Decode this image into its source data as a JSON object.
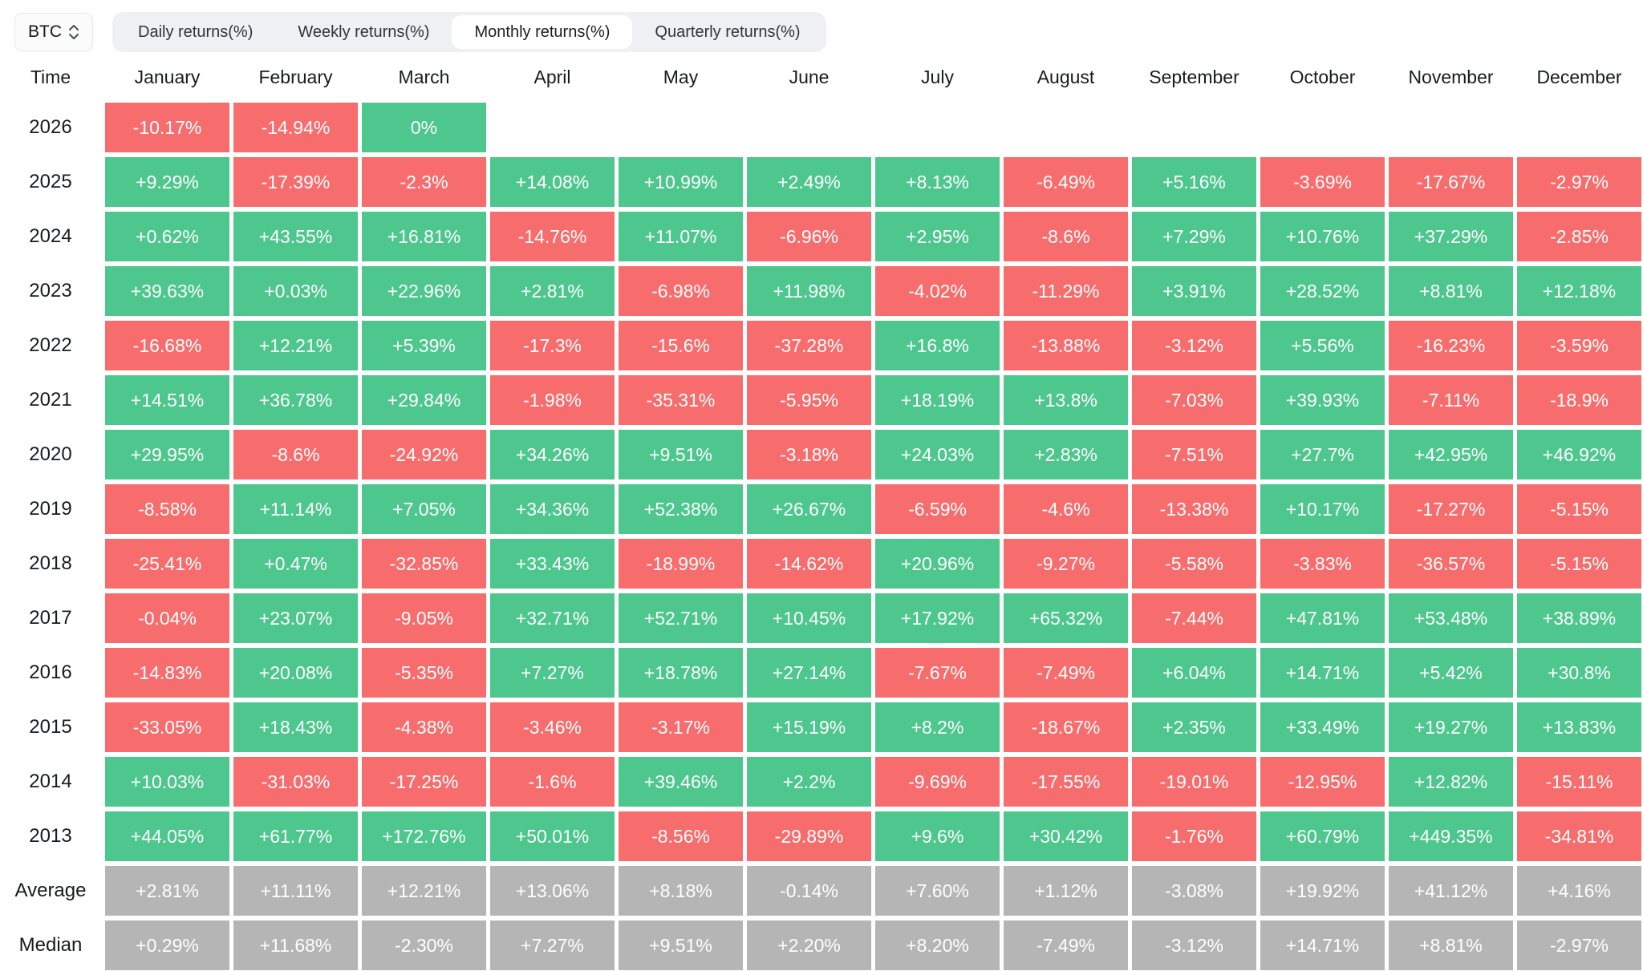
{
  "controls": {
    "asset_selector": {
      "label": "BTC",
      "icon": "chevron-up-down-icon"
    },
    "tabs": [
      {
        "label": "Daily returns(%)",
        "active": false
      },
      {
        "label": "Weekly returns(%)",
        "active": false
      },
      {
        "label": "Monthly returns(%)",
        "active": true
      },
      {
        "label": "Quarterly returns(%)",
        "active": false
      }
    ]
  },
  "colors": {
    "positive": "#4ec78e",
    "negative": "#f76d6d",
    "neutral": "#b5b5b5"
  },
  "chart_data": {
    "type": "heatmap",
    "title": "BTC Monthly returns(%)",
    "legend_note": "green = positive month, red = negative month, gray = Average/Median summary rows",
    "columns": [
      "Time",
      "January",
      "February",
      "March",
      "April",
      "May",
      "June",
      "July",
      "August",
      "September",
      "October",
      "November",
      "December"
    ],
    "rows": [
      {
        "label": "2026",
        "values": [
          "-10.17%",
          "-14.94%",
          "0%"
        ]
      },
      {
        "label": "2025",
        "values": [
          "+9.29%",
          "-17.39%",
          "-2.3%",
          "+14.08%",
          "+10.99%",
          "+2.49%",
          "+8.13%",
          "-6.49%",
          "+5.16%",
          "-3.69%",
          "-17.67%",
          "-2.97%"
        ]
      },
      {
        "label": "2024",
        "values": [
          "+0.62%",
          "+43.55%",
          "+16.81%",
          "-14.76%",
          "+11.07%",
          "-6.96%",
          "+2.95%",
          "-8.6%",
          "+7.29%",
          "+10.76%",
          "+37.29%",
          "-2.85%"
        ]
      },
      {
        "label": "2023",
        "values": [
          "+39.63%",
          "+0.03%",
          "+22.96%",
          "+2.81%",
          "-6.98%",
          "+11.98%",
          "-4.02%",
          "-11.29%",
          "+3.91%",
          "+28.52%",
          "+8.81%",
          "+12.18%"
        ]
      },
      {
        "label": "2022",
        "values": [
          "-16.68%",
          "+12.21%",
          "+5.39%",
          "-17.3%",
          "-15.6%",
          "-37.28%",
          "+16.8%",
          "-13.88%",
          "-3.12%",
          "+5.56%",
          "-16.23%",
          "-3.59%"
        ]
      },
      {
        "label": "2021",
        "values": [
          "+14.51%",
          "+36.78%",
          "+29.84%",
          "-1.98%",
          "-35.31%",
          "-5.95%",
          "+18.19%",
          "+13.8%",
          "-7.03%",
          "+39.93%",
          "-7.11%",
          "-18.9%"
        ]
      },
      {
        "label": "2020",
        "values": [
          "+29.95%",
          "-8.6%",
          "-24.92%",
          "+34.26%",
          "+9.51%",
          "-3.18%",
          "+24.03%",
          "+2.83%",
          "-7.51%",
          "+27.7%",
          "+42.95%",
          "+46.92%"
        ]
      },
      {
        "label": "2019",
        "values": [
          "-8.58%",
          "+11.14%",
          "+7.05%",
          "+34.36%",
          "+52.38%",
          "+26.67%",
          "-6.59%",
          "-4.6%",
          "-13.38%",
          "+10.17%",
          "-17.27%",
          "-5.15%"
        ]
      },
      {
        "label": "2018",
        "values": [
          "-25.41%",
          "+0.47%",
          "-32.85%",
          "+33.43%",
          "-18.99%",
          "-14.62%",
          "+20.96%",
          "-9.27%",
          "-5.58%",
          "-3.83%",
          "-36.57%",
          "-5.15%"
        ]
      },
      {
        "label": "2017",
        "values": [
          "-0.04%",
          "+23.07%",
          "-9.05%",
          "+32.71%",
          "+52.71%",
          "+10.45%",
          "+17.92%",
          "+65.32%",
          "-7.44%",
          "+47.81%",
          "+53.48%",
          "+38.89%"
        ]
      },
      {
        "label": "2016",
        "values": [
          "-14.83%",
          "+20.08%",
          "-5.35%",
          "+7.27%",
          "+18.78%",
          "+27.14%",
          "-7.67%",
          "-7.49%",
          "+6.04%",
          "+14.71%",
          "+5.42%",
          "+30.8%"
        ]
      },
      {
        "label": "2015",
        "values": [
          "-33.05%",
          "+18.43%",
          "-4.38%",
          "-3.46%",
          "-3.17%",
          "+15.19%",
          "+8.2%",
          "-18.67%",
          "+2.35%",
          "+33.49%",
          "+19.27%",
          "+13.83%"
        ]
      },
      {
        "label": "2014",
        "values": [
          "+10.03%",
          "-31.03%",
          "-17.25%",
          "-1.6%",
          "+39.46%",
          "+2.2%",
          "-9.69%",
          "-17.55%",
          "-19.01%",
          "-12.95%",
          "+12.82%",
          "-15.11%"
        ]
      },
      {
        "label": "2013",
        "values": [
          "+44.05%",
          "+61.77%",
          "+172.76%",
          "+50.01%",
          "-8.56%",
          "-29.89%",
          "+9.6%",
          "+30.42%",
          "-1.76%",
          "+60.79%",
          "+449.35%",
          "-34.81%"
        ]
      },
      {
        "label": "Average",
        "neutral": true,
        "values": [
          "+2.81%",
          "+11.11%",
          "+12.21%",
          "+13.06%",
          "+8.18%",
          "-0.14%",
          "+7.60%",
          "+1.12%",
          "-3.08%",
          "+19.92%",
          "+41.12%",
          "+4.16%"
        ]
      },
      {
        "label": "Median",
        "neutral": true,
        "values": [
          "+0.29%",
          "+11.68%",
          "-2.30%",
          "+7.27%",
          "+9.51%",
          "+2.20%",
          "+8.20%",
          "-7.49%",
          "-3.12%",
          "+14.71%",
          "+8.81%",
          "-2.97%"
        ]
      }
    ]
  }
}
